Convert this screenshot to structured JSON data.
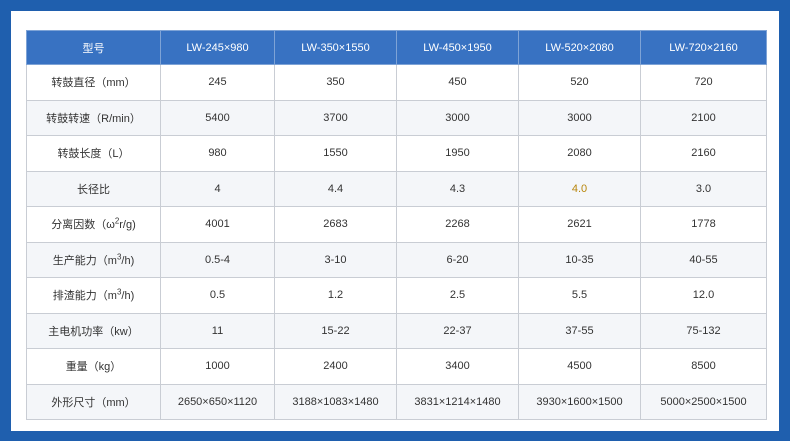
{
  "table": {
    "header": [
      "型号",
      "LW-245×980",
      "LW-350×1550",
      "LW-450×1950",
      "LW-520×2080",
      "LW-720×2160"
    ],
    "rows": [
      {
        "label": "转鼓直径（mm）",
        "values": [
          "245",
          "350",
          "450",
          "520",
          "720"
        ]
      },
      {
        "label": "转鼓转速（R/min）",
        "values": [
          "5400",
          "3700",
          "3000",
          "3000",
          "2100"
        ]
      },
      {
        "label": "转鼓长度（L）",
        "values": [
          "980",
          "1550",
          "1950",
          "2080",
          "2160"
        ]
      },
      {
        "label": "长径比",
        "values": [
          "4",
          "4.4",
          "4.3",
          "4.0",
          "3.0"
        ]
      },
      {
        "label_pre": "分离因数（ω",
        "label_sup": "2",
        "label_post": "r/g)",
        "values": [
          "4001",
          "2683",
          "2268",
          "2621",
          "1778"
        ]
      },
      {
        "label_pre": "生产能力（m",
        "label_sup": "3",
        "label_post": "/h)",
        "values": [
          "0.5-4",
          "3-10",
          "6-20",
          "10-35",
          "40-55"
        ]
      },
      {
        "label_pre": "排渣能力（m",
        "label_sup": "3",
        "label_post": "/h)",
        "values": [
          "0.5",
          "1.2",
          "2.5",
          "5.5",
          "12.0"
        ]
      },
      {
        "label": "主电机功率（kw）",
        "values": [
          "11",
          "15-22",
          "22-37",
          "37-55",
          "75-132"
        ]
      },
      {
        "label": "重量（kg）",
        "values": [
          "1000",
          "2400",
          "3400",
          "4500",
          "8500"
        ]
      },
      {
        "label": "外形尺寸（mm）",
        "values": [
          "2650×650×1120",
          "3188×1083×1480",
          "3831×1214×1480",
          "3930×1600×1500",
          "5000×2500×1500"
        ]
      }
    ]
  },
  "colors": {
    "page_background": "#1f5fae",
    "header_background": "#3872c2",
    "highlight_text": "#b8860b"
  }
}
